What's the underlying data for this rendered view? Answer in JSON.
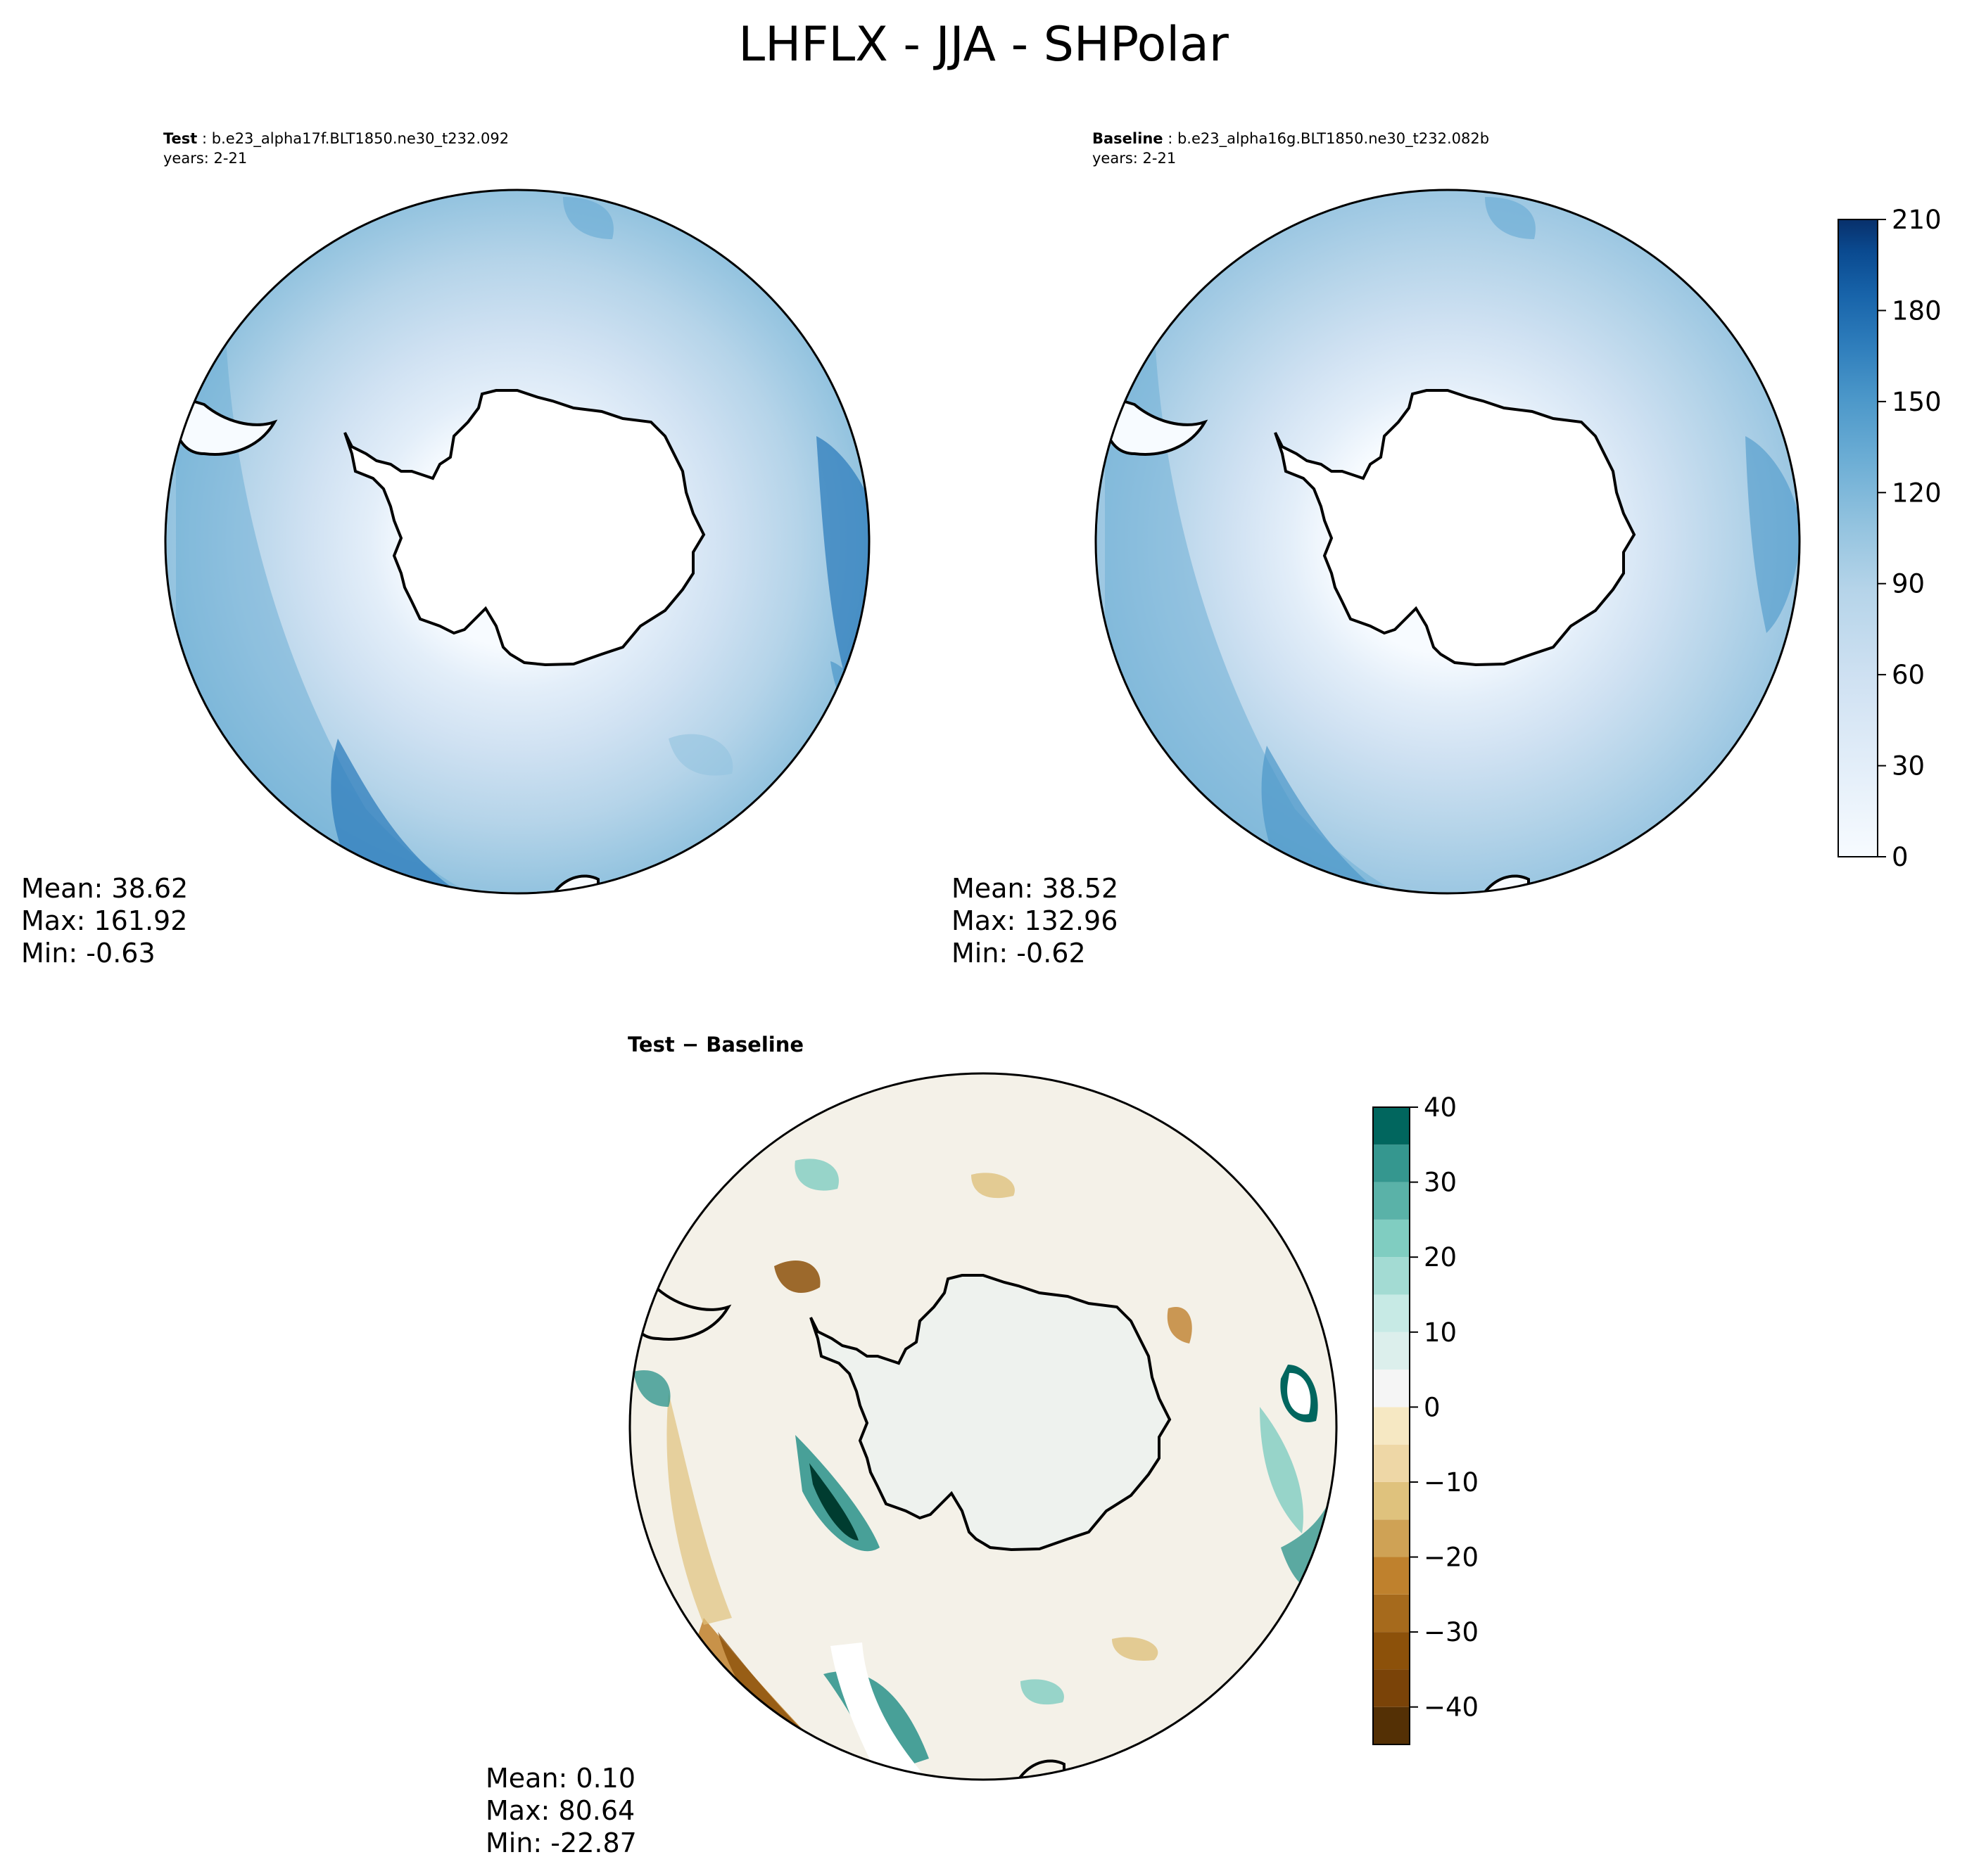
{
  "title": "LHFLX - JJA - SHPolar",
  "panels": {
    "test": {
      "label": "Test",
      "case": "b.e23_alpha17f.BLT1850.ne30_t232.092",
      "years": "years: 2-21",
      "mean": "Mean: 38.62",
      "max": "Max: 161.92",
      "min": "Min: -0.63"
    },
    "baseline": {
      "label": "Baseline",
      "case": "b.e23_alpha16g.BLT1850.ne30_t232.082b",
      "years": "years: 2-21",
      "mean": "Mean: 38.52",
      "max": "Max: 132.96",
      "min": "Min: -0.62"
    },
    "diff": {
      "title_left": "Test",
      "title_right": "Baseline",
      "mean": "Mean:  0.10",
      "max": "Max: 80.64",
      "min": "Min: -22.87"
    }
  },
  "chart_data": [
    {
      "type": "heatmap",
      "name": "test",
      "projection": "south-polar-stereographic",
      "colormap": "Blues",
      "colorbar": {
        "levels": [
          0,
          210
        ],
        "ticks": [
          0,
          30,
          60,
          90,
          120,
          150,
          180,
          210
        ],
        "tick_labels": [
          "0",
          "30",
          "60",
          "90",
          "120",
          "150",
          "180",
          "210"
        ]
      },
      "stats": {
        "mean": 38.62,
        "max": 161.92,
        "min": -0.63
      }
    },
    {
      "type": "heatmap",
      "name": "baseline",
      "projection": "south-polar-stereographic",
      "colormap": "Blues",
      "colorbar": {
        "levels": [
          0,
          210
        ],
        "ticks": [
          0,
          30,
          60,
          90,
          120,
          150,
          180,
          210
        ],
        "tick_labels": [
          "0",
          "30",
          "60",
          "90",
          "120",
          "150",
          "180",
          "210"
        ]
      },
      "stats": {
        "mean": 38.52,
        "max": 132.96,
        "min": -0.62
      }
    },
    {
      "type": "heatmap",
      "name": "difference",
      "projection": "south-polar-stereographic",
      "colormap": "BrBG",
      "colorbar": {
        "levels": [
          -45,
          40
        ],
        "ticks": [
          -40,
          -30,
          -20,
          -10,
          0,
          10,
          20,
          30,
          40
        ],
        "tick_labels": [
          "−40",
          "−30",
          "−20",
          "−10",
          "0",
          "10",
          "20",
          "30",
          "40"
        ]
      },
      "stats": {
        "mean": 0.1,
        "max": 80.64,
        "min": -22.87
      }
    }
  ],
  "colors": {
    "blues": [
      "#f7fbff",
      "#e3eef9",
      "#cfe1f2",
      "#b5d4e9",
      "#93c3df",
      "#6daed5",
      "#4b97c9",
      "#2f7ebc",
      "#1864aa",
      "#0a4a90",
      "#08306b"
    ],
    "brbg": [
      "#543005",
      "#8c510a",
      "#bf812d",
      "#dfc27d",
      "#f6e8c3",
      "#f5f5f5",
      "#c7eae5",
      "#80cdc1",
      "#35978f",
      "#01665e",
      "#003c30"
    ],
    "diff_background": "#f4f1e8"
  }
}
